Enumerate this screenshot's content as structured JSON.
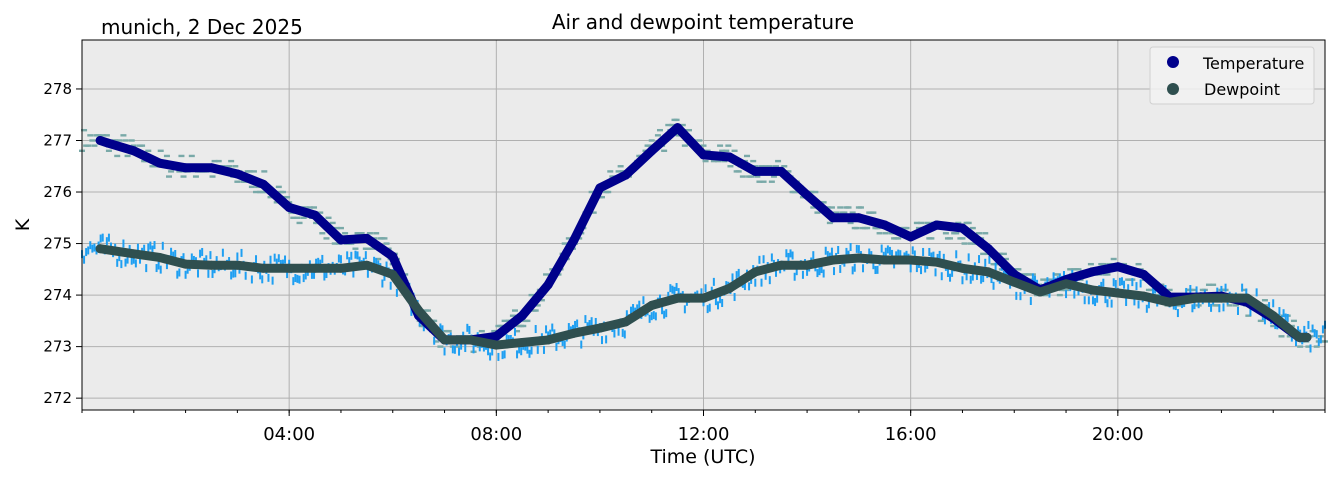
{
  "chart_data": {
    "type": "scatter",
    "title": "Air and dewpoint temperature",
    "subtitle": "munich, 2 Dec 2025",
    "xlabel": "Time (UTC)",
    "ylabel": "K",
    "xlim_hours": [
      0,
      24
    ],
    "ylim": [
      271.77,
      278.95
    ],
    "x_ticks": [
      {
        "hour": 4,
        "label": "04:00"
      },
      {
        "hour": 8,
        "label": "08:00"
      },
      {
        "hour": 12,
        "label": "12:00"
      },
      {
        "hour": 16,
        "label": "16:00"
      },
      {
        "hour": 20,
        "label": "20:00"
      }
    ],
    "y_ticks": [
      272,
      273,
      274,
      275,
      276,
      277,
      278
    ],
    "grid": true,
    "background": "#ebebeb",
    "legend_position": "top-right",
    "series": [
      {
        "name": "Temperature",
        "color": "#00008b",
        "raw_color": "#79a9a8",
        "x_hours": [
          0.35,
          0.5,
          1,
          1.5,
          2,
          2.5,
          3,
          3.5,
          4,
          4.5,
          5,
          5.5,
          6,
          6.5,
          7,
          7.5,
          8,
          8.5,
          9,
          9.5,
          10,
          10.5,
          11,
          11.5,
          12,
          12.5,
          13,
          13.5,
          14,
          14.5,
          15,
          15.5,
          16,
          16.5,
          17,
          17.5,
          18,
          18.5,
          19,
          19.5,
          20,
          20.5,
          21,
          21.5,
          22,
          22.5,
          23,
          23.5,
          23.65
        ],
        "values": [
          277.0,
          276.95,
          276.8,
          276.56,
          276.47,
          276.47,
          276.35,
          276.15,
          275.7,
          275.55,
          275.07,
          275.1,
          274.75,
          273.6,
          273.13,
          273.13,
          273.2,
          273.6,
          274.2,
          275.07,
          276.08,
          276.33,
          276.8,
          277.25,
          276.72,
          276.68,
          276.4,
          276.4,
          275.94,
          275.5,
          275.5,
          275.36,
          275.13,
          275.36,
          275.3,
          274.9,
          274.4,
          274.1,
          274.3,
          274.45,
          274.55,
          274.4,
          273.96,
          273.96,
          273.98,
          273.86,
          273.55,
          273.18,
          273.18
        ]
      },
      {
        "name": "Dewpoint",
        "color": "#2f4f4f",
        "raw_color": "#1e9ff2",
        "x_hours": [
          0.35,
          1,
          1.5,
          2,
          2.5,
          3,
          3.5,
          4,
          4.5,
          5,
          5.5,
          6,
          6.5,
          7,
          7.5,
          8,
          8.5,
          9,
          9.5,
          10,
          10.5,
          11,
          11.5,
          12,
          12.5,
          13,
          13.5,
          14,
          14.5,
          15,
          15.5,
          16,
          16.5,
          17,
          17.5,
          18,
          18.5,
          19,
          19.5,
          20,
          20.5,
          21,
          21.5,
          22,
          22.5,
          23,
          23.5,
          23.65
        ],
        "values": [
          274.9,
          274.8,
          274.73,
          274.6,
          274.58,
          274.58,
          274.52,
          274.52,
          274.52,
          274.52,
          274.58,
          274.4,
          273.7,
          273.13,
          273.13,
          273.03,
          273.08,
          273.13,
          273.26,
          273.36,
          273.48,
          273.8,
          273.94,
          273.94,
          274.13,
          274.45,
          274.58,
          274.58,
          274.68,
          274.72,
          274.68,
          274.68,
          274.64,
          274.52,
          274.45,
          274.25,
          274.06,
          274.22,
          274.1,
          274.04,
          273.98,
          273.86,
          273.94,
          273.94,
          273.94,
          273.6,
          273.18,
          273.18
        ]
      }
    ]
  }
}
